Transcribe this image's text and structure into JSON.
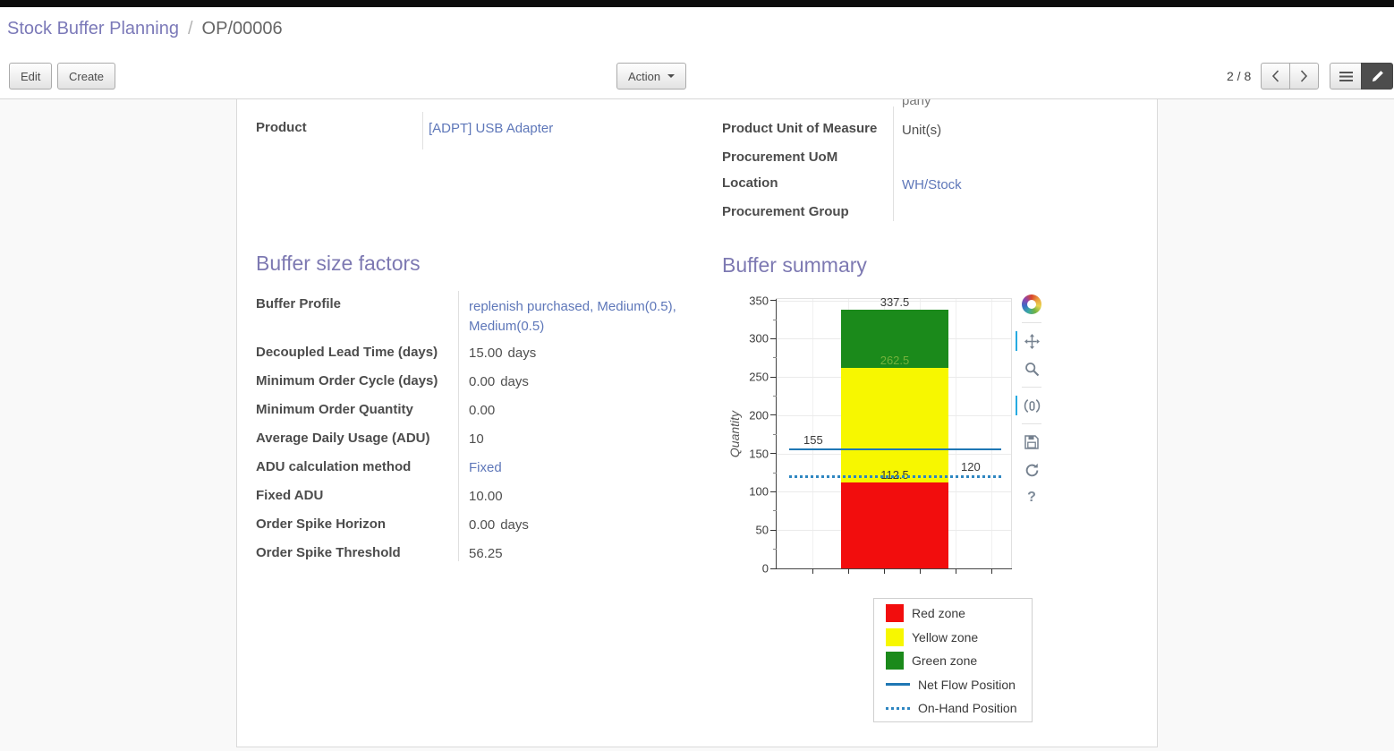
{
  "breadcrumb": {
    "parent": "Stock Buffer Planning",
    "separator": "/",
    "current": "OP/00006"
  },
  "control_panel": {
    "edit_label": "Edit",
    "create_label": "Create",
    "action_label": "Action",
    "pager_text": "2 / 8",
    "view_switcher": {
      "views": [
        "list",
        "form"
      ],
      "active": "form"
    }
  },
  "sheet": {
    "partial_text": "pany",
    "product": {
      "label": "Product",
      "value": "[ADPT] USB Adapter"
    },
    "right_fields": [
      {
        "label": "Product Unit of Measure",
        "value": "Unit(s)"
      },
      {
        "label": "Procurement UoM",
        "value": ""
      },
      {
        "label": "Location",
        "value": "WH/Stock"
      },
      {
        "label": "Procurement Group",
        "value": ""
      }
    ],
    "factors": {
      "title": "Buffer size factors",
      "rows": [
        {
          "label": "Buffer Profile",
          "value": "replenish purchased, Medium(0.5), Medium(0.5)"
        },
        {
          "label": "Decoupled Lead Time (days)",
          "value": "15.00",
          "unit": "days"
        },
        {
          "label": "Minimum Order Cycle (days)",
          "value": "0.00",
          "unit": "days"
        },
        {
          "label": "Minimum Order Quantity",
          "value": "0.00"
        },
        {
          "label": "Average Daily Usage (ADU)",
          "value": "10"
        },
        {
          "label": "ADU calculation method",
          "value": "Fixed"
        },
        {
          "label": "Fixed ADU",
          "value": "10.00"
        },
        {
          "label": "Order Spike Horizon",
          "value": "0.00",
          "unit": "days"
        },
        {
          "label": "Order Spike Threshold",
          "value": "56.25"
        }
      ]
    },
    "summary": {
      "title": "Buffer summary"
    }
  },
  "chart_data": {
    "type": "bar",
    "title": "Buffer summary",
    "xlabel": "",
    "ylabel": "Quantity",
    "ylim": [
      0,
      352
    ],
    "yticks": [
      0,
      50,
      100,
      150,
      200,
      250,
      300,
      350
    ],
    "grid": true,
    "legend_position": "bottom-right",
    "zones": [
      {
        "name": "Red zone",
        "from": 0,
        "to": 112.5,
        "to_label": "112.5",
        "color": "#f20d0d",
        "label_color": "#3a3a3a"
      },
      {
        "name": "Yellow zone",
        "from": 112.5,
        "to": 262.5,
        "to_label": "262.5",
        "color": "#f7f700",
        "label_color": "#74b23c"
      },
      {
        "name": "Green zone",
        "from": 262.5,
        "to": 337.5,
        "to_label": "337.5",
        "color": "#1b8a1b",
        "label_color": "#3a3a3a"
      }
    ],
    "lines": [
      {
        "name": "Net Flow Position",
        "value": 155,
        "value_label": "155",
        "style": "solid",
        "color": "#1f77b4",
        "label_side": "left"
      },
      {
        "name": "On-Hand Position",
        "value": 120,
        "value_label": "120",
        "style": "dotted",
        "color": "#2e86c1",
        "label_side": "right"
      }
    ],
    "legend": [
      "Red zone",
      "Yellow zone",
      "Green zone",
      "Net Flow Position",
      "On-Hand Position"
    ],
    "toolbar": {
      "tools": [
        "bokeh-logo",
        "pan",
        "box-zoom",
        "wheel-zoom",
        "save",
        "reset",
        "help"
      ],
      "active": [
        "pan",
        "wheel-zoom"
      ]
    }
  },
  "colors": {
    "accent_purple": "#7d79b2",
    "link_blue": "#5e77b9",
    "toolbar_active_blue": "#26aae1"
  }
}
